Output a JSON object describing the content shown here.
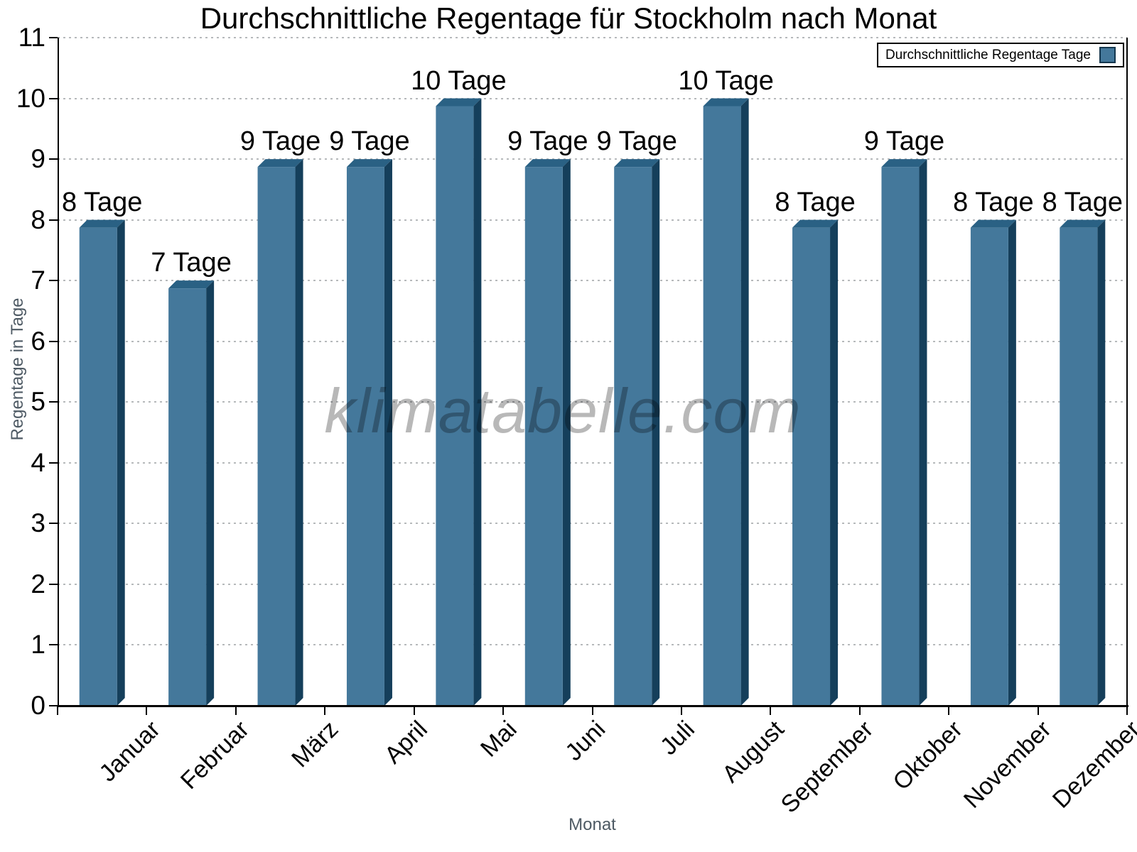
{
  "title": "Durchschnittliche Regentage für Stockholm nach Monat",
  "legend": {
    "label": "Durchschnittliche Regentage Tage"
  },
  "watermark": "klimatabelle.com",
  "x_axis_label": "Monat",
  "y_axis_label": "Regentage in Tage",
  "chart_data": {
    "type": "bar",
    "title": "Durchschnittliche Regentage für Stockholm nach Monat",
    "categories": [
      "Januar",
      "Februar",
      "März",
      "April",
      "Mai",
      "Juni",
      "Juli",
      "August",
      "September",
      "Oktober",
      "November",
      "Dezember"
    ],
    "values": [
      8,
      7,
      9,
      9,
      10,
      9,
      9,
      10,
      8,
      9,
      8,
      8
    ],
    "bar_labels": [
      "8 Tage",
      "7 Tage",
      "9 Tage",
      "9 Tage",
      "10 Tage",
      "9 Tage",
      "9 Tage",
      "10 Tage",
      "8 Tage",
      "9 Tage",
      "8 Tage",
      "8 Tage"
    ],
    "series_name": "Durchschnittliche Regentage Tage",
    "xlabel": "Monat",
    "ylabel": "Regentage in Tage",
    "ylim": [
      0,
      11
    ],
    "y_ticks": [
      0,
      1,
      2,
      3,
      4,
      5,
      6,
      7,
      8,
      9,
      10,
      11
    ],
    "grid": "horizontal-dashed",
    "legend_position": "top-right",
    "colors": {
      "bar_face": "#44789B",
      "bar_side": "#153F5B",
      "bar_top": "#2A6184",
      "grid": "#b6b9bb",
      "axis_title_gray": "#4e5a64"
    }
  }
}
